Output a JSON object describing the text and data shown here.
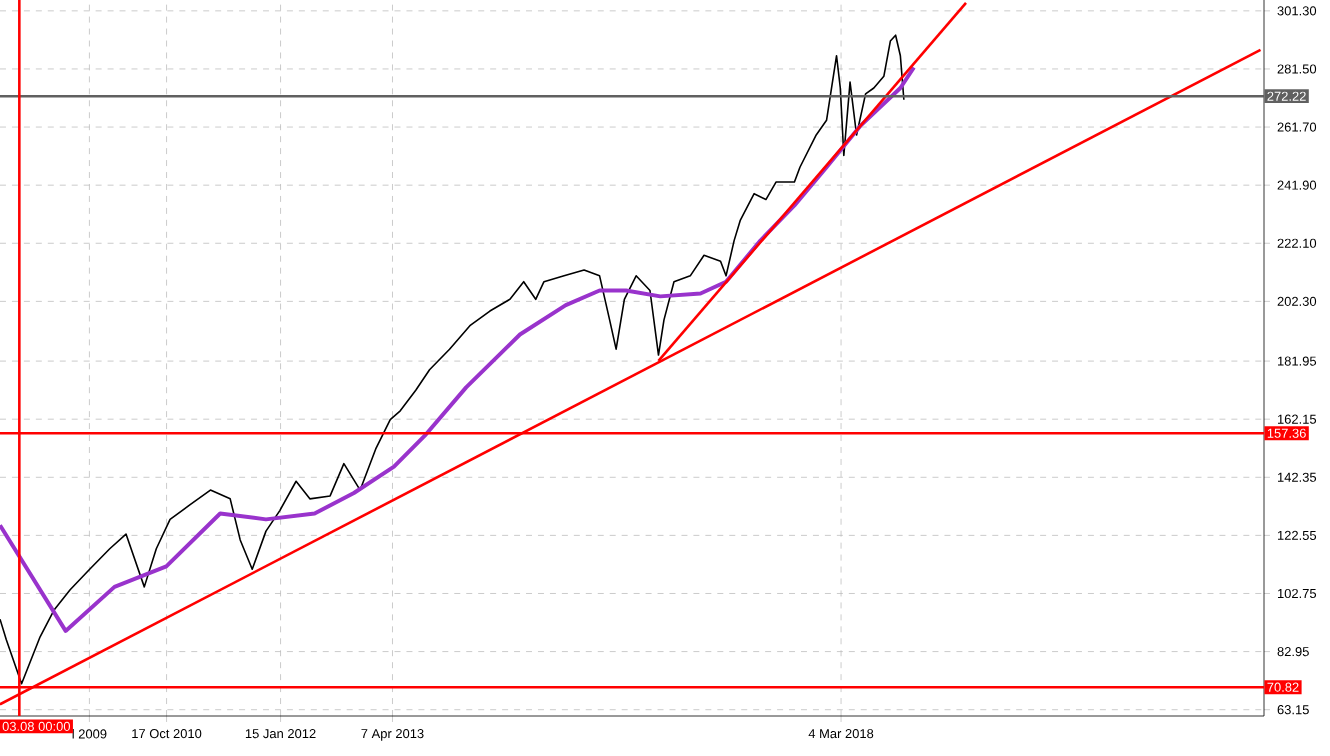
{
  "chart_data": {
    "type": "line",
    "xlim": [
      "2008-12-20",
      "2022-10-19"
    ],
    "ylim": [
      61,
      305
    ],
    "xticks": [
      {
        "value": "2009-12-13",
        "label": "l 2009"
      },
      {
        "value": "2010-10-17",
        "label": "17 Oct 2010"
      },
      {
        "value": "2012-01-15",
        "label": "15 Jan 2012"
      },
      {
        "value": "2013-04-07",
        "label": "7 Apr 2013"
      },
      {
        "value": "2018-03-04",
        "label": "4 Mar 2018"
      }
    ],
    "yticks": [
      63.15,
      82.95,
      102.75,
      122.55,
      142.35,
      162.15,
      181.95,
      {
        "value": 202.3,
        "label": "202.30"
      },
      {
        "value": 222.1,
        "label": "222.10"
      },
      {
        "value": 241.9,
        "label": "241.90"
      },
      {
        "value": 261.7,
        "label": "261.70"
      },
      {
        "value": 281.5,
        "label": "281.50"
      },
      {
        "value": 301.3,
        "label": "301.30"
      }
    ],
    "grid": true,
    "marker": "none",
    "line_style": "solid",
    "series": [
      {
        "color": "#000000",
        "x": [
          "2008-12-20",
          "2009-01-15",
          "2009-03-17",
          "2009-05-30",
          "2009-07-24",
          "2009-09-27",
          "2009-12-14",
          "2010-03-04",
          "2010-05-08",
          "2010-07-20",
          "2010-09-06",
          "2010-10-31",
          "2011-01-19",
          "2011-04-10",
          "2011-06-28",
          "2011-08-07",
          "2011-09-24",
          "2011-11-18",
          "2012-01-12",
          "2012-03-17",
          "2012-05-11",
          "2012-07-31",
          "2012-09-24",
          "2012-11-28",
          "2013-01-30",
          "2013-03-29",
          "2013-05-08",
          "2013-07-09",
          "2013-09-02",
          "2013-11-21",
          "2014-02-10",
          "2014-05-01",
          "2014-07-20",
          "2014-09-13",
          "2014-10-31",
          "2014-12-03",
          "2015-02-21",
          "2015-05-12",
          "2015-07-13",
          "2015-08-22",
          "2015-09-17",
          "2015-10-20",
          "2015-12-06",
          "2016-01-30",
          "2016-03-04",
          "2016-03-26",
          "2016-05-05",
          "2016-07-09",
          "2016-09-02",
          "2016-11-07",
          "2016-11-29",
          "2017-01-01",
          "2017-01-26",
          "2017-03-22",
          "2017-05-08",
          "2017-06-18",
          "2017-08-30",
          "2017-09-21",
          "2017-11-25",
          "2018-01-05",
          "2018-02-14",
          "2018-03-01",
          "2018-03-15",
          "2018-04-09",
          "2018-05-05",
          "2018-06-10",
          "2018-07-13",
          "2018-08-22",
          "2018-09-17",
          "2018-10-08",
          "2018-10-27",
          "2018-11-10"
        ],
        "values": [
          94,
          87,
          72,
          88,
          97,
          104,
          111,
          118,
          123,
          105,
          118,
          128,
          133,
          138,
          135,
          121,
          111,
          124,
          131,
          141,
          135,
          136,
          147,
          138,
          152,
          162,
          165,
          172,
          179,
          186,
          194,
          199,
          203,
          209,
          203,
          209,
          211,
          213,
          211,
          196,
          186,
          203,
          211,
          206,
          184,
          196,
          209,
          211,
          218,
          216,
          211,
          223,
          230,
          239,
          237,
          243,
          243,
          248,
          259,
          264,
          286,
          275,
          252,
          277,
          259,
          273,
          275,
          279,
          291,
          293,
          286,
          271
        ]
      },
      {
        "color": "#9933cc",
        "x": [
          "2008-12-20",
          "2009-09-09",
          "2010-03-23",
          "2010-10-16",
          "2011-05-19",
          "2011-11-18",
          "2012-05-30",
          "2012-11-03",
          "2013-04-13",
          "2013-08-19",
          "2014-01-26",
          "2014-08-29",
          "2015-02-28",
          "2015-07-13",
          "2015-10-27",
          "2016-03-11",
          "2016-08-19",
          "2016-11-29",
          "2017-04-16",
          "2017-08-30",
          "2018-01-05",
          "2018-05-19",
          "2018-10-27",
          "2018-12-20"
        ],
        "values": [
          126,
          90,
          105,
          112,
          130,
          128,
          130,
          137,
          146,
          157,
          173,
          191,
          201,
          206,
          206,
          204,
          205,
          209,
          223,
          235,
          248,
          262,
          275,
          282
        ]
      },
      {
        "color": "#ff0000",
        "x": [
          "2008-12-20",
          "2022-10-05"
        ],
        "values": [
          65,
          288
        ]
      },
      {
        "color": "#ff0000",
        "x": [
          "2016-03-04",
          "2019-07-16"
        ],
        "values": [
          182,
          304
        ]
      }
    ],
    "ref_lines": [
      {
        "axis": "y",
        "value": 157.36,
        "label": "157.36",
        "color": "#ff0000"
      },
      {
        "axis": "y",
        "value": 70.82,
        "label": "70.82",
        "color": "#ff0000"
      },
      {
        "axis": "y",
        "value": 272.22,
        "label": "272.22",
        "color": "#606060"
      },
      {
        "axis": "x",
        "value": "2009-03-08T00:00",
        "label": "03.08 00:00",
        "color": "#ff0000"
      }
    ]
  }
}
